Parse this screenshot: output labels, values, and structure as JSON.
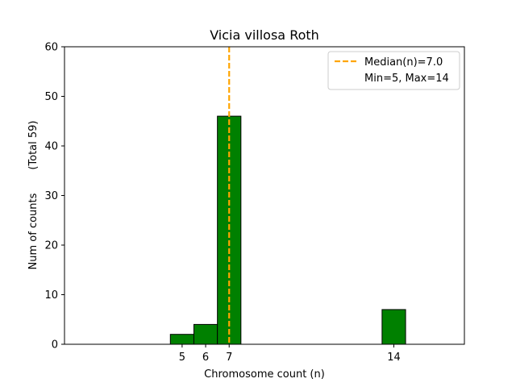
{
  "chart_data": {
    "type": "bar",
    "title": "Vicia villosa Roth",
    "xlabel": "Chromosome count (n)",
    "ylabel": "Num of counts       (Total 59)",
    "xlim": [
      0,
      17
    ],
    "ylim": [
      0,
      60
    ],
    "x_ticks": [
      5,
      6,
      7,
      14
    ],
    "y_ticks": [
      0,
      10,
      20,
      30,
      40,
      50,
      60
    ],
    "bar_width": 1,
    "bar_color": "#008000",
    "bar_edge_color": "#000000",
    "bars": [
      {
        "x": 5,
        "value": 2
      },
      {
        "x": 6,
        "value": 4
      },
      {
        "x": 7,
        "value": 46
      },
      {
        "x": 14,
        "value": 7
      }
    ],
    "median_line": {
      "x": 7.0,
      "color": "#FFA500",
      "style": "dashed"
    },
    "legend": {
      "position": "top-right",
      "entries": [
        "Median(n)=7.0",
        "Min=5, Max=14"
      ]
    },
    "grid": false
  }
}
